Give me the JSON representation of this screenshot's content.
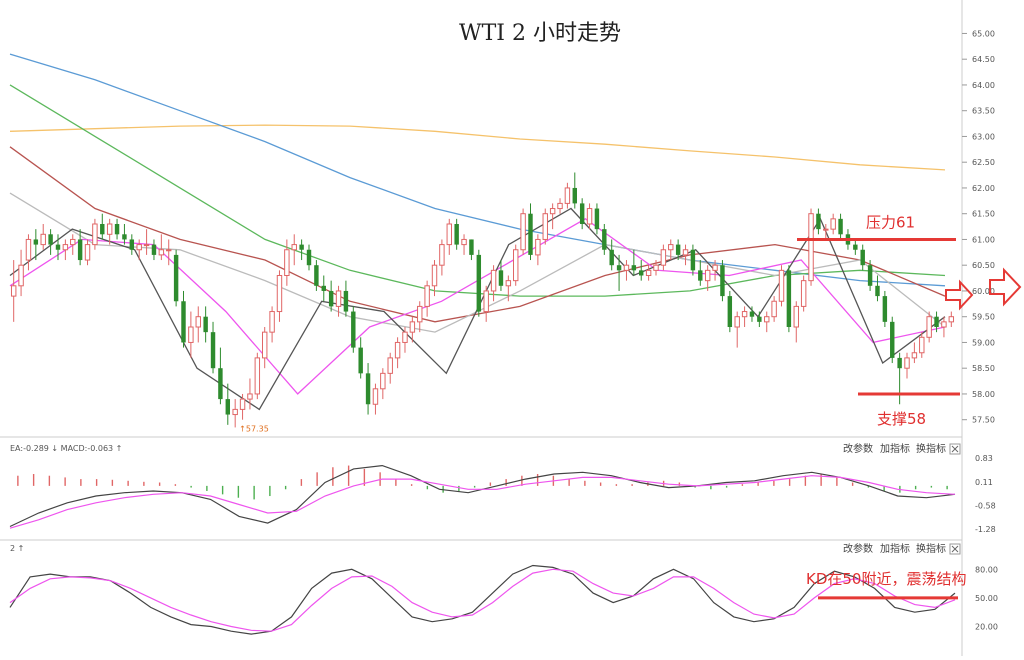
{
  "chart_data": {
    "type": "candlestick",
    "title": "WTI 2 小时走势",
    "main": {
      "ylim": [
        57.3,
        65.3
      ],
      "yticks": [
        "65.00",
        "64.50",
        "64.00",
        "63.50",
        "63.00",
        "62.50",
        "62.00",
        "61.50",
        "61.00",
        "60.50",
        "60.00",
        "59.50",
        "59.00",
        "58.50",
        "58.00",
        "57.50"
      ],
      "low_label": "57.35",
      "annotations": [
        {
          "text": "压力61",
          "value": 61.0
        },
        {
          "text": "支撑58",
          "value": 58.0
        }
      ],
      "candles": [
        [
          59.9,
          60.6,
          59.4,
          60.1
        ],
        [
          60.1,
          60.8,
          59.9,
          60.5
        ],
        [
          60.6,
          61.1,
          60.4,
          61.0
        ],
        [
          61.0,
          61.2,
          60.6,
          60.9
        ],
        [
          60.9,
          61.3,
          60.8,
          61.1
        ],
        [
          61.1,
          61.2,
          60.7,
          60.9
        ],
        [
          60.9,
          61.1,
          60.6,
          60.8
        ],
        [
          60.8,
          61.0,
          60.6,
          60.9
        ],
        [
          60.9,
          61.1,
          60.7,
          61.0
        ],
        [
          61.0,
          61.2,
          60.5,
          60.6
        ],
        [
          60.6,
          61.0,
          60.5,
          60.9
        ],
        [
          60.9,
          61.4,
          60.8,
          61.3
        ],
        [
          61.3,
          61.5,
          61.0,
          61.1
        ],
        [
          61.1,
          61.4,
          60.9,
          61.3
        ],
        [
          61.3,
          61.4,
          61.0,
          61.1
        ],
        [
          61.1,
          61.3,
          60.9,
          61.0
        ],
        [
          61.0,
          61.1,
          60.7,
          60.8
        ],
        [
          60.8,
          61.0,
          60.6,
          60.9
        ],
        [
          60.9,
          61.2,
          60.7,
          60.9
        ],
        [
          60.9,
          61.0,
          60.6,
          60.7
        ],
        [
          60.7,
          61.1,
          60.6,
          60.8
        ],
        [
          60.8,
          61.0,
          60.5,
          60.8
        ],
        [
          60.7,
          60.8,
          59.7,
          59.8
        ],
        [
          59.8,
          60.0,
          58.9,
          59.0
        ],
        [
          59.0,
          59.6,
          58.7,
          59.3
        ],
        [
          59.3,
          59.7,
          59.0,
          59.5
        ],
        [
          59.5,
          59.7,
          59.0,
          59.2
        ],
        [
          59.2,
          59.4,
          58.4,
          58.5
        ],
        [
          58.5,
          58.9,
          57.8,
          57.9
        ],
        [
          57.9,
          58.2,
          57.4,
          57.6
        ],
        [
          57.6,
          57.9,
          57.35,
          57.7
        ],
        [
          57.7,
          58.0,
          57.5,
          57.9
        ],
        [
          57.9,
          58.3,
          57.7,
          58.0
        ],
        [
          58.0,
          58.8,
          57.9,
          58.7
        ],
        [
          58.7,
          59.3,
          58.5,
          59.2
        ],
        [
          59.2,
          59.7,
          59.0,
          59.6
        ],
        [
          59.6,
          60.4,
          59.4,
          60.3
        ],
        [
          60.3,
          61.0,
          60.1,
          60.8
        ],
        [
          60.8,
          61.1,
          60.5,
          60.9
        ],
        [
          60.9,
          61.0,
          60.6,
          60.8
        ],
        [
          60.8,
          60.9,
          60.4,
          60.5
        ],
        [
          60.5,
          60.6,
          60.0,
          60.1
        ],
        [
          60.1,
          60.3,
          59.8,
          60.0
        ],
        [
          60.0,
          60.2,
          59.6,
          59.7
        ],
        [
          59.7,
          60.1,
          59.5,
          60.0
        ],
        [
          60.0,
          60.2,
          59.5,
          59.6
        ],
        [
          59.6,
          59.7,
          58.8,
          58.9
        ],
        [
          58.9,
          59.1,
          58.3,
          58.4
        ],
        [
          58.4,
          58.6,
          57.6,
          57.8
        ],
        [
          57.8,
          58.2,
          57.6,
          58.1
        ],
        [
          58.1,
          58.5,
          57.9,
          58.4
        ],
        [
          58.4,
          58.8,
          58.2,
          58.7
        ],
        [
          58.7,
          59.1,
          58.5,
          59.0
        ],
        [
          59.0,
          59.3,
          58.8,
          59.2
        ],
        [
          59.2,
          59.5,
          59.0,
          59.4
        ],
        [
          59.4,
          59.8,
          59.2,
          59.7
        ],
        [
          59.7,
          60.2,
          59.5,
          60.1
        ],
        [
          60.1,
          60.6,
          59.9,
          60.5
        ],
        [
          60.5,
          61.0,
          60.3,
          60.9
        ],
        [
          60.9,
          61.4,
          60.7,
          61.3
        ],
        [
          61.3,
          61.4,
          60.8,
          60.9
        ],
        [
          60.9,
          61.1,
          60.7,
          61.0
        ],
        [
          61.0,
          61.0,
          60.6,
          60.7
        ],
        [
          60.7,
          60.8,
          59.5,
          59.6
        ],
        [
          59.6,
          60.1,
          59.4,
          60.0
        ],
        [
          60.0,
          60.5,
          59.8,
          60.4
        ],
        [
          60.4,
          60.6,
          60.0,
          60.1
        ],
        [
          60.1,
          60.3,
          59.8,
          60.2
        ],
        [
          60.2,
          60.9,
          60.1,
          60.8
        ],
        [
          60.8,
          61.6,
          60.7,
          61.5
        ],
        [
          61.5,
          61.7,
          60.6,
          60.7
        ],
        [
          60.7,
          61.1,
          60.5,
          61.0
        ],
        [
          61.0,
          61.6,
          60.9,
          61.5
        ],
        [
          61.5,
          61.7,
          61.2,
          61.6
        ],
        [
          61.6,
          61.8,
          61.5,
          61.7
        ],
        [
          61.7,
          62.1,
          61.6,
          62.0
        ],
        [
          62.0,
          62.3,
          61.6,
          61.7
        ],
        [
          61.7,
          61.8,
          61.2,
          61.3
        ],
        [
          61.3,
          61.7,
          61.2,
          61.6
        ],
        [
          61.6,
          61.7,
          61.1,
          61.2
        ],
        [
          61.2,
          61.3,
          60.7,
          60.8
        ],
        [
          60.8,
          61.0,
          60.4,
          60.5
        ],
        [
          60.5,
          60.7,
          60.0,
          60.4
        ],
        [
          60.4,
          60.6,
          60.2,
          60.5
        ],
        [
          60.5,
          60.8,
          60.3,
          60.4
        ],
        [
          60.4,
          60.6,
          60.2,
          60.3
        ],
        [
          60.3,
          60.5,
          60.2,
          60.4
        ],
        [
          60.4,
          60.6,
          60.3,
          60.5
        ],
        [
          60.5,
          60.9,
          60.4,
          60.8
        ],
        [
          60.8,
          61.0,
          60.6,
          60.9
        ],
        [
          60.9,
          61.0,
          60.6,
          60.7
        ],
        [
          60.7,
          60.9,
          60.5,
          60.8
        ],
        [
          60.8,
          60.9,
          60.3,
          60.4
        ],
        [
          60.4,
          60.6,
          60.1,
          60.2
        ],
        [
          60.2,
          60.5,
          60.0,
          60.4
        ],
        [
          60.4,
          60.6,
          60.2,
          60.5
        ],
        [
          60.5,
          60.6,
          59.8,
          59.9
        ],
        [
          59.9,
          60.0,
          59.2,
          59.3
        ],
        [
          59.3,
          59.6,
          58.9,
          59.5
        ],
        [
          59.5,
          59.7,
          59.3,
          59.6
        ],
        [
          59.6,
          59.7,
          59.4,
          59.5
        ],
        [
          59.5,
          59.6,
          59.3,
          59.4
        ],
        [
          59.4,
          59.6,
          59.2,
          59.5
        ],
        [
          59.5,
          59.9,
          59.4,
          59.8
        ],
        [
          59.8,
          60.5,
          59.7,
          60.4
        ],
        [
          60.4,
          60.5,
          59.2,
          59.3
        ],
        [
          59.3,
          59.8,
          59.0,
          59.7
        ],
        [
          59.7,
          60.3,
          59.6,
          60.2
        ],
        [
          60.2,
          61.6,
          60.1,
          61.5
        ],
        [
          61.5,
          61.6,
          61.1,
          61.2
        ],
        [
          61.2,
          61.3,
          61.0,
          61.2
        ],
        [
          61.2,
          61.5,
          61.1,
          61.4
        ],
        [
          61.4,
          61.5,
          61.0,
          61.1
        ],
        [
          61.1,
          61.2,
          60.8,
          60.9
        ],
        [
          60.9,
          61.0,
          60.7,
          60.8
        ],
        [
          60.8,
          60.9,
          60.4,
          60.5
        ],
        [
          60.5,
          60.6,
          60.0,
          60.1
        ],
        [
          60.1,
          60.3,
          59.8,
          59.9
        ],
        [
          59.9,
          60.0,
          59.3,
          59.4
        ],
        [
          59.4,
          59.5,
          58.6,
          58.7
        ],
        [
          58.7,
          58.8,
          57.8,
          58.5
        ],
        [
          58.5,
          58.8,
          58.3,
          58.7
        ],
        [
          58.7,
          59.0,
          58.6,
          58.8
        ],
        [
          58.8,
          59.2,
          58.7,
          59.1
        ],
        [
          59.1,
          59.6,
          59.0,
          59.5
        ],
        [
          59.5,
          59.6,
          59.2,
          59.3
        ],
        [
          59.3,
          59.5,
          59.1,
          59.4
        ],
        [
          59.4,
          59.6,
          59.3,
          59.5
        ]
      ],
      "ma_series": [
        {
          "color": "#f5c26b",
          "values": [
            63.1,
            63.15,
            63.2,
            63.22,
            63.2,
            63.1,
            62.95,
            62.85,
            62.72,
            62.6,
            62.45,
            62.35
          ]
        },
        {
          "color": "#5b9bd5",
          "values": [
            64.6,
            64.1,
            63.5,
            62.9,
            62.2,
            61.6,
            61.2,
            60.9,
            60.6,
            60.4,
            60.2,
            60.1
          ]
        },
        {
          "color": "#5cb85c",
          "values": [
            64.0,
            63.0,
            62.0,
            61.0,
            60.4,
            60.0,
            59.9,
            59.9,
            60.0,
            60.3,
            60.4,
            60.3
          ]
        },
        {
          "color": "#b85450",
          "values": [
            62.8,
            61.6,
            61.0,
            60.6,
            59.8,
            59.4,
            59.7,
            60.3,
            60.7,
            60.9,
            60.6,
            59.9
          ]
        },
        {
          "color": "#bbbbbb",
          "values": [
            61.9,
            60.9,
            60.8,
            60.2,
            59.5,
            59.2,
            60.0,
            60.9,
            60.6,
            60.3,
            60.6,
            59.3
          ]
        },
        {
          "color": "#ee55ee",
          "values": [
            60.1,
            61.0,
            60.9,
            59.6,
            58.0,
            59.3,
            59.8,
            60.6,
            61.4,
            60.4,
            60.3,
            60.6,
            59.0,
            59.3
          ]
        },
        {
          "color": "#555555",
          "values": [
            60.3,
            61.2,
            60.8,
            58.5,
            57.7,
            59.8,
            59.6,
            58.4,
            60.9,
            61.6,
            60.3,
            60.8,
            59.5,
            61.4,
            58.6,
            59.5
          ]
        }
      ]
    },
    "macd": {
      "label": "EA:-0.289 ↓  MACD:-0.063 ↑",
      "toolbar": [
        "改参数",
        "加指标",
        "换指标"
      ],
      "ylim": [
        -1.45,
        1.0
      ],
      "yticks": [
        "0.83",
        "0.11",
        "-0.58",
        "-1.28"
      ],
      "hist": [
        0.3,
        0.35,
        0.3,
        0.25,
        0.2,
        0.2,
        0.18,
        0.15,
        0.12,
        0.1,
        0.05,
        -0.05,
        -0.15,
        -0.25,
        -0.35,
        -0.4,
        -0.3,
        -0.1,
        0.2,
        0.4,
        0.55,
        0.6,
        0.5,
        0.4,
        0.2,
        0.05,
        -0.1,
        -0.2,
        -0.15,
        -0.05,
        0.1,
        0.2,
        0.3,
        0.35,
        0.3,
        0.2,
        0.15,
        0.1,
        0.05,
        0.05,
        0.1,
        0.15,
        0.1,
        -0.05,
        -0.1,
        -0.05,
        0.05,
        0.1,
        0.15,
        0.2,
        0.3,
        0.35,
        0.25,
        0.1,
        -0.05,
        -0.15,
        -0.2,
        -0.1,
        -0.05,
        -0.1
      ],
      "dif": [
        -1.2,
        -0.8,
        -0.5,
        -0.3,
        -0.2,
        -0.15,
        -0.2,
        -0.4,
        -0.9,
        -1.1,
        -0.7,
        0.1,
        0.5,
        0.6,
        0.3,
        -0.1,
        -0.2,
        0.0,
        0.2,
        0.35,
        0.4,
        0.3,
        0.1,
        -0.05,
        0.0,
        0.1,
        0.15,
        0.3,
        0.4,
        0.25,
        0.0,
        -0.3,
        -0.35,
        -0.25
      ],
      "dea": [
        -1.25,
        -1.0,
        -0.7,
        -0.5,
        -0.35,
        -0.25,
        -0.2,
        -0.3,
        -0.55,
        -0.8,
        -0.75,
        -0.3,
        0.0,
        0.2,
        0.2,
        0.05,
        -0.1,
        -0.1,
        0.05,
        0.15,
        0.25,
        0.25,
        0.15,
        0.05,
        0.0,
        0.05,
        0.1,
        0.2,
        0.3,
        0.25,
        0.1,
        -0.1,
        -0.2,
        -0.25
      ]
    },
    "kd": {
      "label": "2 ↑",
      "toolbar": [
        "改参数",
        "加指标",
        "换指标"
      ],
      "ylim": [
        10,
        95
      ],
      "yticks": [
        "80.00",
        "50.00",
        "20.00"
      ],
      "annotation": {
        "text": "KD在50附近，震荡结构",
        "value": 50
      },
      "k": [
        40,
        72,
        75,
        72,
        72,
        68,
        55,
        40,
        30,
        22,
        20,
        15,
        12,
        15,
        30,
        60,
        76,
        80,
        70,
        50,
        30,
        25,
        28,
        35,
        55,
        75,
        84,
        82,
        75,
        55,
        45,
        52,
        70,
        80,
        70,
        45,
        30,
        25,
        28,
        40,
        65,
        78,
        72,
        60,
        40,
        35,
        38,
        55
      ],
      "d": [
        45,
        60,
        70,
        72,
        71,
        68,
        60,
        50,
        40,
        32,
        25,
        20,
        16,
        15,
        22,
        42,
        60,
        72,
        73,
        62,
        45,
        35,
        30,
        32,
        45,
        62,
        76,
        80,
        78,
        65,
        55,
        52,
        60,
        72,
        72,
        60,
        45,
        33,
        29,
        33,
        50,
        65,
        70,
        65,
        52,
        43,
        40,
        48
      ]
    }
  }
}
